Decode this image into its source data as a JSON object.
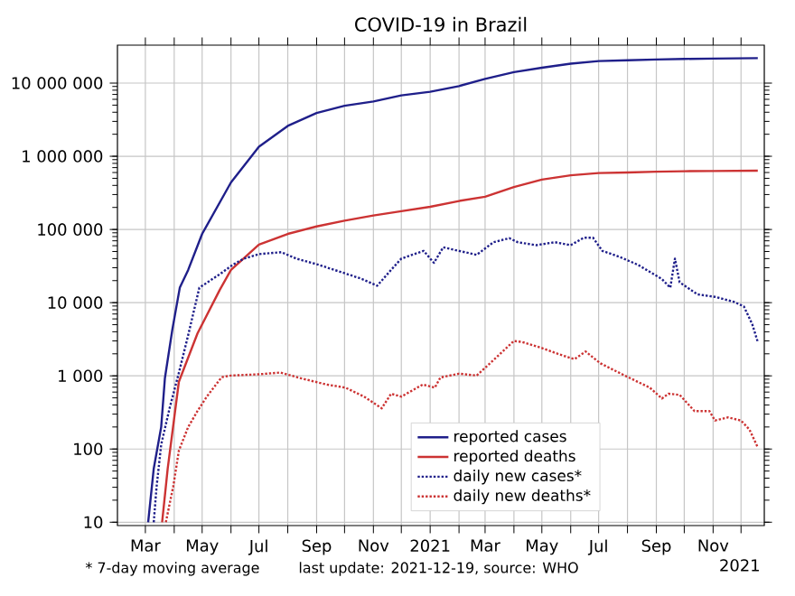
{
  "chart_data": {
    "type": "line",
    "title": "COVID-19 in Brazil",
    "xlim": [
      "2020-01-31",
      "2021-12-26"
    ],
    "ylim": [
      9,
      33000000
    ],
    "log": true,
    "grid": true,
    "legend": "bottom",
    "xticks": [
      {
        "value": "2020-03-01",
        "label": "Mar"
      },
      {
        "value": "2020-04-01",
        "label": null
      },
      {
        "value": "2020-05-01",
        "label": "May"
      },
      {
        "value": "2020-06-01",
        "label": null
      },
      {
        "value": "2020-07-01",
        "label": "Jul"
      },
      {
        "value": "2020-08-01",
        "label": null
      },
      {
        "value": "2020-09-01",
        "label": "Sep"
      },
      {
        "value": "2020-10-01",
        "label": null
      },
      {
        "value": "2020-11-01",
        "label": "Nov"
      },
      {
        "value": "2020-12-01",
        "label": null
      },
      {
        "value": "2021-01-01",
        "label": "2021"
      },
      {
        "value": "2021-02-01",
        "label": null
      },
      {
        "value": "2021-03-01",
        "label": "Mar"
      },
      {
        "value": "2021-04-01",
        "label": null
      },
      {
        "value": "2021-05-01",
        "label": "May"
      },
      {
        "value": "2021-06-01",
        "label": null
      },
      {
        "value": "2021-07-01",
        "label": "Jul"
      },
      {
        "value": "2021-08-01",
        "label": null
      },
      {
        "value": "2021-09-01",
        "label": "Sep"
      },
      {
        "value": "2021-10-01",
        "label": null
      },
      {
        "value": "2021-11-01",
        "label": "Nov"
      },
      {
        "value": "2021-12-01",
        "label": null
      }
    ],
    "yticks": [
      10,
      100,
      {
        "value": 1000,
        "label": "1 000"
      },
      {
        "value": 10000,
        "label": "10 000"
      },
      {
        "value": 100000,
        "label": "100 000"
      },
      {
        "value": 1000000,
        "label": "1 000 000"
      },
      {
        "value": 10000000,
        "label": "10 000 000"
      }
    ],
    "series": [
      {
        "name": "reported cases",
        "color": "#1f1f8a",
        "line_style": "solid",
        "x": [
          "2020-03-04",
          "2020-03-10",
          "2020-03-18",
          "2020-03-22",
          "2020-03-30",
          "2020-04-07",
          "2020-04-16",
          "2020-05-01",
          "2020-06-01",
          "2020-07-01",
          "2020-08-01",
          "2020-09-01",
          "2020-10-01",
          "2020-11-01",
          "2020-12-01",
          "2021-01-01",
          "2021-02-01",
          "2021-03-01",
          "2021-04-01",
          "2021-05-01",
          "2021-06-01",
          "2021-07-01",
          "2021-08-01",
          "2021-09-01",
          "2021-10-01",
          "2021-11-01",
          "2021-12-19"
        ],
        "values": [
          10,
          54,
          200,
          930,
          4300,
          16000,
          28000,
          87000,
          440000,
          1350000,
          2600000,
          3900000,
          4900000,
          5600000,
          6800000,
          7600000,
          9100000,
          11400000,
          14100000,
          16200000,
          18400000,
          20000000,
          20500000,
          21000000,
          21400000,
          21600000,
          21900000
        ]
      },
      {
        "name": "reported deaths",
        "color": "#cc3333",
        "line_style": "solid",
        "x": [
          "2020-03-19",
          "2020-03-25",
          "2020-04-06",
          "2020-04-26",
          "2020-05-20",
          "2020-06-01",
          "2020-07-01",
          "2020-08-01",
          "2020-09-01",
          "2020-10-01",
          "2020-11-01",
          "2020-12-01",
          "2021-01-01",
          "2021-02-01",
          "2021-03-01",
          "2021-04-01",
          "2021-05-01",
          "2021-06-01",
          "2021-07-01",
          "2021-08-01",
          "2021-09-01",
          "2021-10-01",
          "2021-11-01",
          "2021-12-19"
        ],
        "values": [
          10,
          54,
          830,
          3800,
          15000,
          28000,
          62000,
          87000,
          110000,
          132000,
          155000,
          178000,
          204000,
          245000,
          280000,
          380000,
          480000,
          550000,
          590000,
          600000,
          615000,
          625000,
          630000,
          635000
        ]
      },
      {
        "name": "daily new cases*",
        "color": "#1f1f8a",
        "line_style": "dotted",
        "x": [
          "2020-03-10",
          "2020-03-13",
          "2020-03-18",
          "2020-03-27",
          "2020-04-06",
          "2020-04-16",
          "2020-04-28",
          "2020-05-21",
          "2020-06-03",
          "2020-06-15",
          "2020-07-01",
          "2020-07-25",
          "2020-08-10",
          "2020-09-03",
          "2020-10-02",
          "2020-10-20",
          "2020-11-05",
          "2020-11-20",
          "2020-12-01",
          "2020-12-25",
          "2021-01-05",
          "2021-01-15",
          "2021-02-01",
          "2021-02-20",
          "2021-03-10",
          "2021-03-27",
          "2021-04-05",
          "2021-04-25",
          "2021-05-15",
          "2021-06-01",
          "2021-06-15",
          "2021-06-25",
          "2021-07-05",
          "2021-07-24",
          "2021-08-12",
          "2021-09-07",
          "2021-09-16",
          "2021-09-21",
          "2021-09-26",
          "2021-10-15",
          "2021-11-03",
          "2021-11-23",
          "2021-12-04",
          "2021-12-13",
          "2021-12-19"
        ],
        "values": [
          10,
          30,
          115,
          360,
          1100,
          3600,
          16000,
          25000,
          33000,
          40000,
          46000,
          49000,
          40000,
          33000,
          25000,
          21000,
          17000,
          28000,
          40000,
          51000,
          35000,
          57000,
          51000,
          45000,
          67000,
          76000,
          67000,
          61000,
          67000,
          61000,
          77000,
          77000,
          51000,
          42000,
          33000,
          21000,
          16000,
          40000,
          19000,
          13000,
          12000,
          10300,
          8900,
          5100,
          2900
        ]
      },
      {
        "name": "daily new deaths*",
        "color": "#cc3333",
        "line_style": "dotted",
        "x": [
          "2020-03-23",
          "2020-03-31",
          "2020-04-06",
          "2020-04-16",
          "2020-04-26",
          "2020-05-06",
          "2020-05-22",
          "2020-06-01",
          "2020-07-01",
          "2020-07-24",
          "2020-08-16",
          "2020-09-12",
          "2020-10-02",
          "2020-10-22",
          "2020-11-10",
          "2020-11-20",
          "2020-12-01",
          "2020-12-24",
          "2021-01-06",
          "2021-01-12",
          "2021-02-01",
          "2021-02-20",
          "2021-03-10",
          "2021-04-01",
          "2021-04-10",
          "2021-05-01",
          "2021-05-20",
          "2021-06-05",
          "2021-06-17",
          "2021-07-03",
          "2021-07-29",
          "2021-08-25",
          "2021-09-07",
          "2021-09-14",
          "2021-09-26",
          "2021-10-12",
          "2021-10-28",
          "2021-11-03",
          "2021-11-17",
          "2021-12-01",
          "2021-12-10",
          "2021-12-19"
        ],
        "values": [
          10,
          31,
          95,
          200,
          330,
          520,
          960,
          1010,
          1050,
          1110,
          920,
          760,
          690,
          520,
          360,
          570,
          520,
          760,
          690,
          950,
          1070,
          1010,
          1640,
          3000,
          2900,
          2400,
          1960,
          1690,
          2150,
          1480,
          1010,
          690,
          490,
          570,
          550,
          330,
          330,
          245,
          270,
          245,
          185,
          105
        ]
      }
    ],
    "annotations": [
      "* 7-day moving average",
      "last update: 2021-12-19, source: WHO",
      "2021"
    ]
  }
}
